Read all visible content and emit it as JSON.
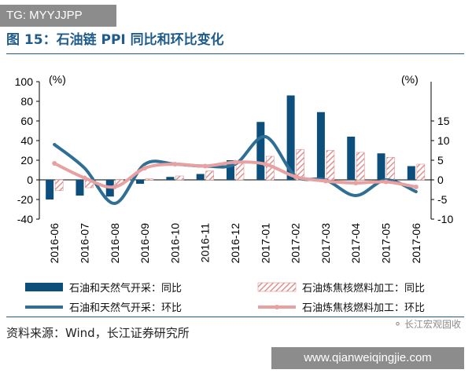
{
  "header": {
    "tag": "TG: MYYJJPP",
    "title": "图 15：石油链 PPI 同比和环比变化"
  },
  "footer": {
    "source": "资料来源：Wind，长江证券研究所",
    "watermark": "长江宏观固收",
    "url": "www.qianweiqingjie.com"
  },
  "colors": {
    "bar_oil_gas": "#0c4f7c",
    "bar_refining": "#e09090",
    "line_oil_gas": "#2f6f96",
    "line_refining": "#e8a0a0",
    "rule": "#1f5c8c"
  },
  "chart_data": {
    "type": "bar",
    "categories": [
      "2016-06",
      "2016-07",
      "2016-08",
      "2016-09",
      "2016-10",
      "2016-11",
      "2016-12",
      "2017-01",
      "2017-02",
      "2017-03",
      "2017-04",
      "2017-05",
      "2017-06"
    ],
    "left_axis": {
      "unit": "(%)",
      "ylim": [
        -40,
        100
      ],
      "ticks": [
        "100",
        "80",
        "60",
        "40",
        "20",
        "0",
        "-20",
        "-40"
      ]
    },
    "right_axis": {
      "unit": "(%)",
      "ylim": [
        -10,
        15
      ],
      "ticks": [
        "15",
        "10",
        "5",
        "0",
        "-5",
        "-10"
      ]
    },
    "series": [
      {
        "name": "石油和天然气开采：同比",
        "kind": "bar",
        "axis": "left",
        "values": [
          -20,
          -16,
          -17,
          -4,
          3,
          6,
          20,
          59,
          86,
          69,
          44,
          27,
          14
        ]
      },
      {
        "name": "石油炼焦核燃料加工：同比",
        "kind": "bar",
        "axis": "left",
        "values": [
          -11,
          -8,
          -5,
          1,
          4,
          9,
          17,
          24,
          31,
          30,
          28,
          23,
          16
        ]
      },
      {
        "name": "石油和天然气开采：环比",
        "kind": "line",
        "axis": "right",
        "values": [
          9,
          3,
          -6,
          4,
          4,
          3.5,
          4,
          11,
          1,
          0,
          -4,
          0,
          -3
        ]
      },
      {
        "name": "石油炼焦核燃料加工：环比",
        "kind": "line",
        "axis": "right",
        "values": [
          4.2,
          0.5,
          -1.8,
          3,
          4,
          3.5,
          4.5,
          4,
          0.8,
          -0.3,
          -0.8,
          -0.5,
          -1.8
        ]
      }
    ],
    "legend_position": "bottom",
    "grid": false
  }
}
